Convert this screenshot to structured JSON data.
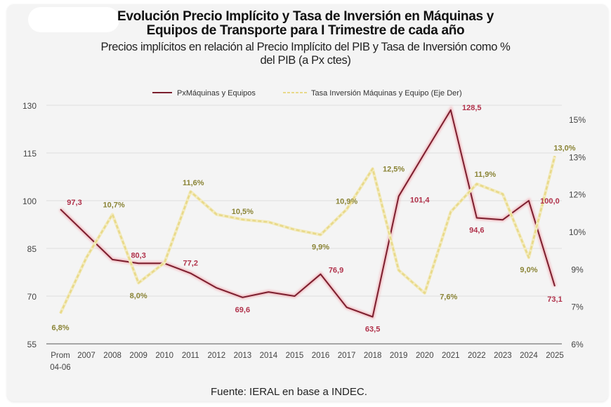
{
  "header": {
    "title_line1": "Evolución Precio Implícito y Tasa de Inversión en Máquinas y",
    "title_line2": "Equipos de Transporte para I Trimestre de cada año",
    "subtitle_line1": "Precios implícitos en relación al Precio Implícito del PIB y Tasa de Inversión como %",
    "subtitle_line2": "del PIB (a Px ctes)"
  },
  "footer": {
    "source": "Fuente: IERAL en base a INDEC."
  },
  "colors": {
    "price_line": "#7b1e2e",
    "price_glow": "#f2a7ae",
    "price_label": "#b0314a",
    "rate_line": "#e8d98a",
    "rate_label": "#8a8436",
    "grid": "#dedede",
    "axis": "#8c8c8c",
    "tick_text": "#444444"
  },
  "chart_data": {
    "type": "line",
    "title": "Evolución Precio Implícito y Tasa de Inversión en Máquinas y Equipos de Transporte para I Trimestre de cada año",
    "subtitle": "Precios implícitos en relación al Precio Implícito del PIB y Tasa de Inversión como % del PIB (a Px ctes)",
    "categories": [
      "Prom 04-06",
      "2007",
      "2008",
      "2009",
      "2010",
      "2011",
      "2012",
      "2013",
      "2014",
      "2015",
      "2016",
      "2017",
      "2018",
      "2019",
      "2020",
      "2021",
      "2022",
      "2023",
      "2024",
      "2025"
    ],
    "category_lines": [
      [
        "Prom",
        "04-06"
      ],
      [
        "2007"
      ],
      [
        "2008"
      ],
      [
        "2009"
      ],
      [
        "2010"
      ],
      [
        "2011"
      ],
      [
        "2012"
      ],
      [
        "2013"
      ],
      [
        "2014"
      ],
      [
        "2015"
      ],
      [
        "2016"
      ],
      [
        "2017"
      ],
      [
        "2018"
      ],
      [
        "2019"
      ],
      [
        "2020"
      ],
      [
        "2021"
      ],
      [
        "2022"
      ],
      [
        "2023"
      ],
      [
        "2024"
      ],
      [
        "2025"
      ]
    ],
    "series": [
      {
        "name": "PxMáquinas y Equipos",
        "axis": "left",
        "style": "solid",
        "values": [
          97.3,
          89.4,
          81.5,
          80.3,
          80.3,
          77.2,
          72.6,
          69.6,
          71.3,
          70.0,
          76.9,
          66.5,
          63.5,
          101.4,
          115.0,
          128.5,
          94.6,
          94.0,
          100.0,
          73.1
        ],
        "labels": {
          "0": "97,3",
          "3": "80,3",
          "5": "77,2",
          "7": "69,6",
          "10": "76,9",
          "12": "63,5",
          "13": "101,4",
          "15": "128,5",
          "16": "94,6",
          "18": "100,0",
          "19": "73,1"
        }
      },
      {
        "name": "Tasa Inversión Máquinas y Equipo (Eje Der)",
        "axis": "right",
        "style": "dashed",
        "values": [
          6.8,
          9.0,
          10.7,
          8.0,
          8.8,
          11.6,
          10.7,
          10.5,
          10.4,
          10.1,
          9.9,
          10.9,
          12.5,
          8.5,
          7.6,
          10.8,
          11.9,
          11.5,
          9.0,
          13.0
        ],
        "labels": {
          "0": "6,8%",
          "2": "10,7%",
          "3": "8,0%",
          "5": "11,6%",
          "7": "10,5%",
          "10": "9,9%",
          "11": "10,9%",
          "12": "12,5%",
          "14": "7,6%",
          "16": "11,9%",
          "18": "9,0%",
          "19": "13,0%"
        }
      }
    ],
    "y_left": {
      "min": 55,
      "max": 130,
      "ticks": [
        55,
        70,
        85,
        100,
        115,
        130
      ],
      "tick_labels": [
        "55",
        "70",
        "85",
        "100",
        "115",
        "130"
      ]
    },
    "y_right": {
      "min": 5.6,
      "max": 15,
      "tick_labels": [
        "6%",
        "7%",
        "9%",
        "10%",
        "12%",
        "13%",
        "15%"
      ]
    },
    "grid": true,
    "legend": {
      "placement": "top-center",
      "entries": [
        "PxMáquinas y Equipos",
        "Tasa Inversión Máquinas y Equipo (Eje Der)"
      ]
    },
    "xlabel": "",
    "ylabel": ""
  }
}
